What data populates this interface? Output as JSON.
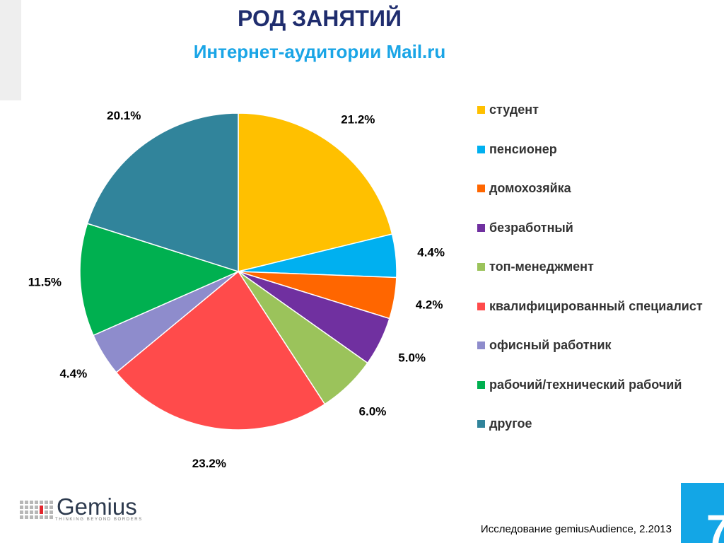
{
  "header": {
    "title": "РОД ЗАНЯТИЙ",
    "subtitle": "Интернет-аудитории Mail.ru"
  },
  "chart_data": {
    "type": "pie",
    "title": "РОД ЗАНЯТИЙ",
    "subtitle": "Интернет-аудитории Mail.ru",
    "legend_position": "right",
    "slices": [
      {
        "label": "студент",
        "value": 21.2,
        "value_label": "21.2%",
        "color": "#ffc000"
      },
      {
        "label": "пенсионер",
        "value": 4.4,
        "value_label": "4.4%",
        "color": "#00b0f0"
      },
      {
        "label": "домохозяйка",
        "value": 4.2,
        "value_label": "4.2%",
        "color": "#ff6600"
      },
      {
        "label": "безработный",
        "value": 5.0,
        "value_label": "5.0%",
        "color": "#7030a0"
      },
      {
        "label": "топ-менеджмент",
        "value": 6.0,
        "value_label": "6.0%",
        "color": "#9bc35b"
      },
      {
        "label": "квалифицированный специалист",
        "value": 23.2,
        "value_label": "23.2%",
        "color": "#ff4b4b"
      },
      {
        "label": "офисный работник",
        "value": 4.4,
        "value_label": "4.4%",
        "color": "#8e8ccc"
      },
      {
        "label": "рабочий/технический рабочий",
        "value": 11.5,
        "value_label": "11.5%",
        "color": "#00b050"
      },
      {
        "label": "другое",
        "value": 20.1,
        "value_label": "20.1%",
        "color": "#31849b"
      }
    ]
  },
  "logo": {
    "name": "Gemius",
    "tagline": "THINKING BEYOND BORDERS"
  },
  "footer": {
    "source": "Исследование gemiusAudience, 2.2013",
    "page_number": "7"
  },
  "colors": {
    "title": "#1f2d6e",
    "subtitle": "#1aa5e6",
    "page_box": "#13a6e6"
  }
}
